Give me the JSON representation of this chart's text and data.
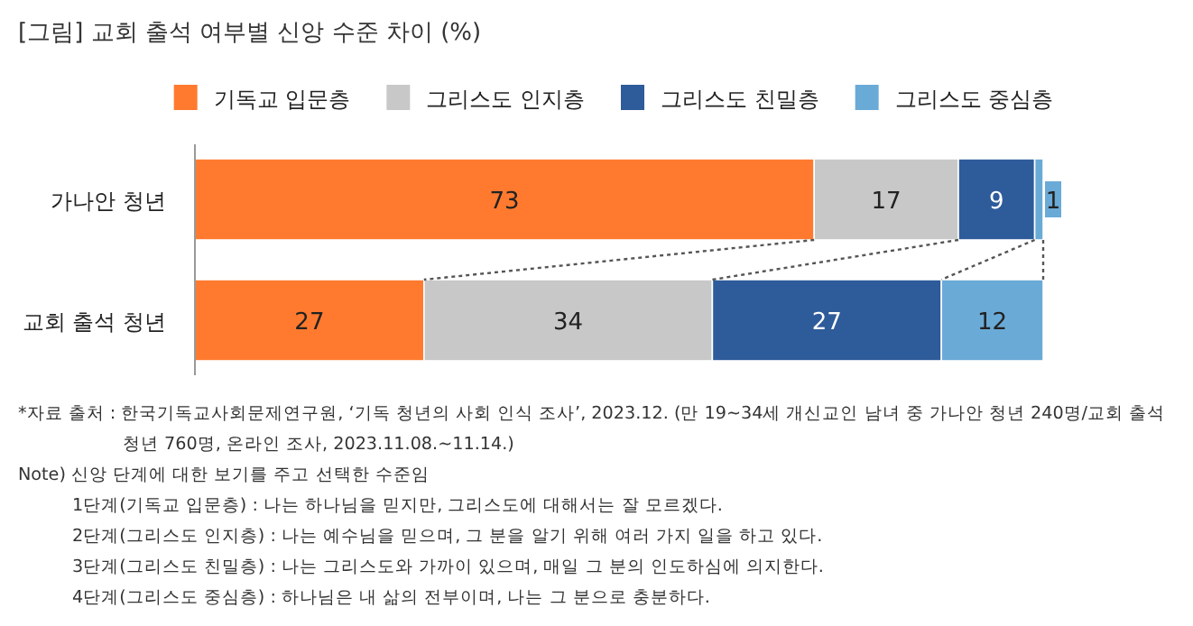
{
  "chart_data": {
    "type": "bar",
    "orientation": "horizontal",
    "stacked": true,
    "title": "[그림] 교회 출석 여부별 신앙 수준 차이 (%)",
    "categories": [
      "가나안 청년",
      "교회 출석 청년"
    ],
    "series": [
      {
        "name": "기독교 입문층",
        "color": "#ff7a2f",
        "values": [
          73,
          27
        ]
      },
      {
        "name": "그리스도 인지층",
        "color": "#c8c8c8",
        "values": [
          17,
          34
        ]
      },
      {
        "name": "그리스도 친밀층",
        "color": "#2e5b9a",
        "values": [
          9,
          27
        ]
      },
      {
        "name": "그리스도 중심층",
        "color": "#6aaad6",
        "values": [
          1,
          12
        ]
      }
    ],
    "data_labels": true,
    "legend": "top",
    "annotations": [
      "*자료 출처 : 한국기독교사회문제연구원, ‘기독 청년의 사회 인식 조사’, 2023.12. (만 19~34세 개신교인 남녀 중 가나안 청년 240명/교회 출석 청년 760명, 온라인 조사, 2023.11.08.~11.14.)",
      "Note) 신앙 단계에 대한 보기를 주고 선택한 수준임",
      "1단계(기독교 입문층) : 나는 하나님을 믿지만, 그리스도에 대해서는 잘 모르겠다.",
      "2단계(그리스도 인지층) : 나는 예수님을 믿으며, 그 분을 알기 위해 여러 가지 일을 하고 있다.",
      "3단계(그리스도 친밀층) : 나는 그리스도와 가까이 있으며, 매일 그 분의  인도하심에 의지한다.",
      "4단계(그리스도 중심층) : 하나님은 내 삶의 전부이며, 나는 그 분으로  충분하다."
    ]
  }
}
